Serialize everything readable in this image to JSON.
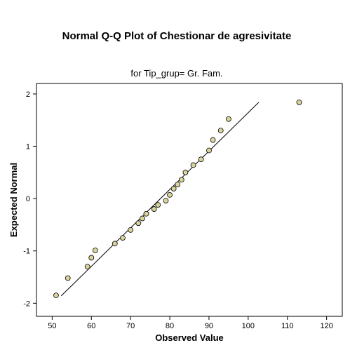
{
  "chart_data": {
    "type": "scatter",
    "title": "Normal Q-Q Plot of Chestionar de agresivitate",
    "subtitle": "for Tip_grup= Gr. Fam.",
    "xlabel": "Observed Value",
    "ylabel": "Expected Normal",
    "xlim": [
      46,
      124
    ],
    "ylim": [
      -2.25,
      2.2
    ],
    "xticks": [
      "50",
      "60",
      "70",
      "80",
      "90",
      "100",
      "110",
      "120"
    ],
    "yticks": [
      "-2",
      "-1",
      "0",
      "1",
      "2"
    ],
    "grid": false,
    "legend": "none",
    "point_color": "#d8d49c",
    "point_stroke": "#000000",
    "points": [
      [
        51,
        -1.85
      ],
      [
        54,
        -1.52
      ],
      [
        59,
        -1.3
      ],
      [
        60,
        -1.13
      ],
      [
        61,
        -0.99
      ],
      [
        66,
        -0.86
      ],
      [
        68,
        -0.75
      ],
      [
        70,
        -0.6
      ],
      [
        72,
        -0.47
      ],
      [
        73,
        -0.38
      ],
      [
        74,
        -0.29
      ],
      [
        76,
        -0.2
      ],
      [
        77,
        -0.12
      ],
      [
        79,
        -0.04
      ],
      [
        80,
        0.07
      ],
      [
        81,
        0.19
      ],
      [
        82,
        0.27
      ],
      [
        83,
        0.36
      ],
      [
        84,
        0.5
      ],
      [
        86,
        0.64
      ],
      [
        88,
        0.75
      ],
      [
        90,
        0.92
      ],
      [
        91,
        1.12
      ],
      [
        93,
        1.3
      ],
      [
        95,
        1.52
      ],
      [
        113,
        1.84
      ]
    ],
    "reference_line": {
      "x": [
        52.3,
        102.7
      ],
      "y": [
        -1.86,
        1.84
      ]
    }
  }
}
